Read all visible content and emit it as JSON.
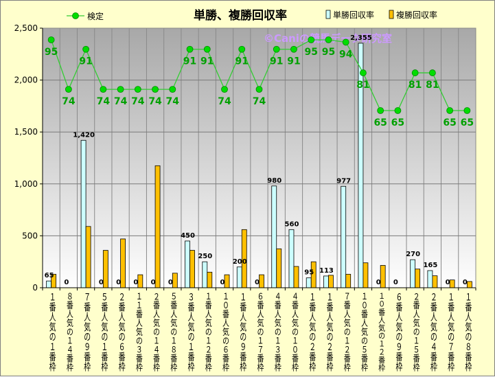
{
  "chart_data": {
    "type": "bar",
    "title": "単勝、複勝回収率",
    "watermark": "©Caniの競馬データ研究室",
    "legend_placement": "top",
    "grid": true,
    "categories": [
      "１番人気の１番枠",
      "８番人気の１４番枠",
      "７番人気の９番枠",
      "５番人気の１番枠",
      "２番人気の６番枠",
      "１１番人気の３番枠",
      "２番人気の１４番枠",
      "５番人気の１８番枠",
      "３番人気の１番枠",
      "１番人気の１２番枠",
      "１０番人気の６番枠",
      "１番人気の９番枠",
      "６番人気の１７番枠",
      "４番人気の１３番枠",
      "４番人気の１０番枠",
      "１番人気の２番枠",
      "１番人気の２番枠",
      "７番人気の１２番枠",
      "１０番人気の５番枠",
      "１０番人気の１２番枠",
      "６番人気の９番枠",
      "２番人気の１５番枠",
      "２番人気の４番枠",
      "１番人気の７番枠",
      "１番人気の８番枠"
    ],
    "ylim": [
      0,
      2500
    ],
    "yticks": [
      "0",
      "500",
      "1,000",
      "1,500",
      "2,000",
      "2,500"
    ],
    "series": [
      {
        "name": "単勝回収率",
        "kind": "bar",
        "color": "#ccffff",
        "values": [
          65,
          0,
          1420,
          0,
          0,
          0,
          0,
          0,
          450,
          250,
          0,
          200,
          0,
          980,
          560,
          95,
          113,
          977,
          2355,
          0,
          0,
          270,
          165,
          0,
          0
        ],
        "labels": [
          "65",
          "0",
          "1,420",
          "0",
          "0",
          "0",
          "0",
          "0",
          "450",
          "250",
          "0",
          "200",
          "0",
          "980",
          "560",
          "95",
          "113",
          "977",
          "2,355",
          "0",
          "0",
          "270",
          "165",
          "0",
          "0"
        ]
      },
      {
        "name": "複勝回収率",
        "kind": "bar",
        "color": "#ffc000",
        "values": [
          130,
          0,
          590,
          360,
          470,
          125,
          1175,
          140,
          360,
          150,
          125,
          560,
          125,
          375,
          205,
          250,
          120,
          130,
          240,
          215,
          0,
          180,
          115,
          75,
          60
        ]
      },
      {
        "name": "検定",
        "kind": "line",
        "color": "#00cc00",
        "values": [
          95,
          74,
          91,
          74,
          74,
          74,
          74,
          74,
          91,
          91,
          74,
          91,
          74,
          91,
          91,
          95,
          95,
          94,
          81,
          65,
          65,
          81,
          81,
          65,
          65
        ],
        "labels": [
          "95",
          "74",
          "91",
          "74",
          "74",
          "74",
          "74",
          "74",
          "91",
          "91",
          "74",
          "91",
          "74",
          "91",
          "91",
          "95",
          "95",
          "94",
          "81",
          "65",
          "65",
          "81",
          "81",
          "65",
          "65"
        ]
      }
    ]
  }
}
